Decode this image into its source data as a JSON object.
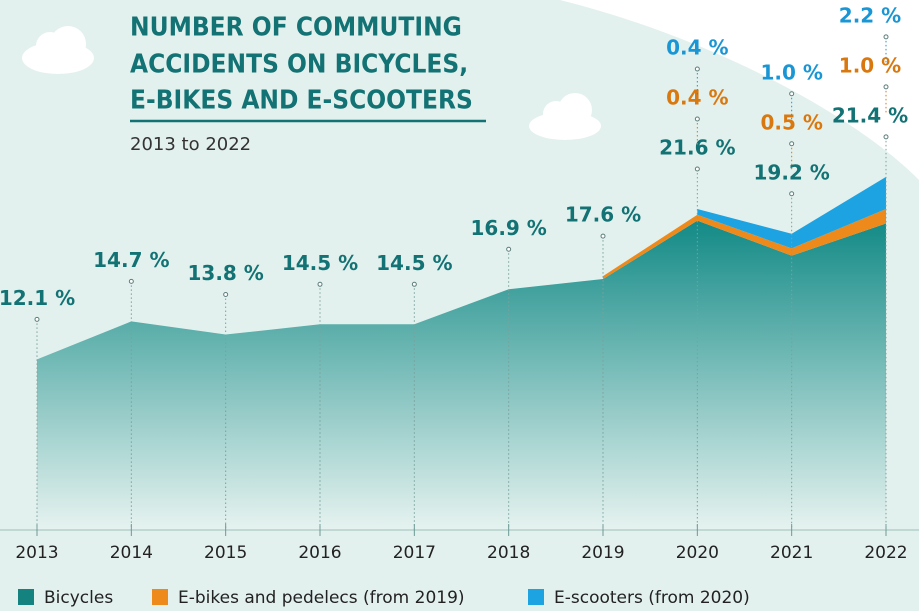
{
  "chart_data": {
    "type": "stacked-area",
    "title_lines": [
      "NUMBER OF COMMUTING",
      "ACCIDENTS ON BICYCLES,",
      "E-BIKES AND E-SCOOTERS"
    ],
    "subtitle": "2013 to 2022",
    "categories": [
      "2013",
      "2014",
      "2015",
      "2016",
      "2017",
      "2018",
      "2019",
      "2020",
      "2021",
      "2022"
    ],
    "ylim": [
      0,
      30
    ],
    "series": [
      {
        "name": "Bicycles",
        "color": "#14837f",
        "label_color": "#137274",
        "values": [
          12.1,
          14.7,
          13.8,
          14.5,
          14.5,
          16.9,
          17.6,
          21.6,
          19.2,
          21.4
        ],
        "value_labels": [
          "12.1 %",
          "14.7 %",
          "13.8 %",
          "14.5 %",
          "14.5 %",
          "16.9 %",
          "17.6 %",
          "21.6 %",
          "19.2 %",
          "21.4 %"
        ]
      },
      {
        "name": "E-bikes and pedelecs (from 2019)",
        "color": "#ee8a1c",
        "label_color": "#d9780f",
        "values": [
          null,
          null,
          null,
          null,
          null,
          null,
          0.2,
          0.4,
          0.5,
          1.0
        ],
        "value_labels": [
          null,
          null,
          null,
          null,
          null,
          null,
          null,
          "0.4 %",
          "0.5 %",
          "1.0 %"
        ]
      },
      {
        "name": "E-scooters (from 2020)",
        "color": "#1ea3e2",
        "label_color": "#1b96d4",
        "values": [
          null,
          null,
          null,
          null,
          null,
          null,
          null,
          0.4,
          1.0,
          2.2
        ],
        "value_labels": [
          null,
          null,
          null,
          null,
          null,
          null,
          null,
          "0.4 %",
          "1.0 %",
          "2.2 %"
        ]
      }
    ]
  }
}
